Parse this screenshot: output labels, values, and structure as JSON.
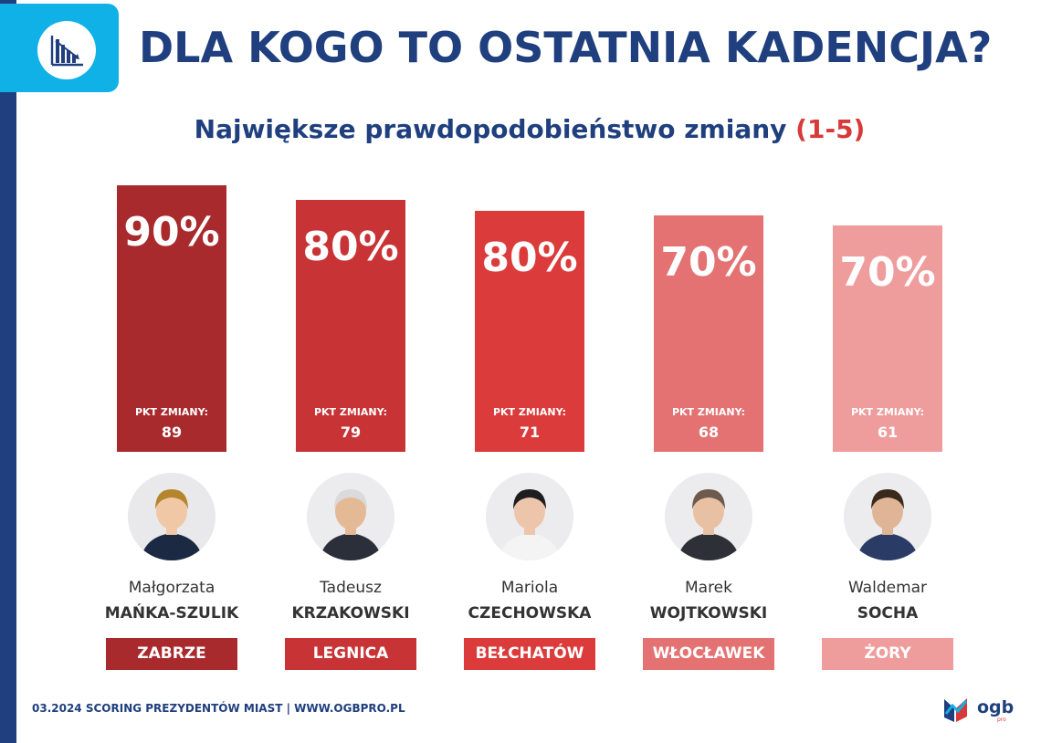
{
  "header": {
    "title": "DLA KOGO TO OSTATNIA KADENCJA?",
    "subtitle_main": "Największe prawdopodobieństwo zmiany",
    "subtitle_range": "(1-5)",
    "icon": "bar-chart-decline-icon"
  },
  "chart_data": {
    "type": "bar",
    "title": "Największe prawdopodobieństwo zmiany (1-5)",
    "categories": [
      "Małgorzata MAŃKA-SZULIK",
      "Tadeusz KRZAKOWSKI",
      "Mariola CZECHOWSKA",
      "Marek WOJTKOWSKI",
      "Waldemar SOCHA"
    ],
    "series": [
      {
        "values": [
          90,
          80,
          80,
          70,
          70
        ]
      }
    ],
    "bars": [
      {
        "percent": 90,
        "label": "90%",
        "pkt_label": "PKT ZMIANY:",
        "pkt": 89,
        "first_name": "Małgorzata",
        "last_name": "MAŃKA-SZULIK",
        "city": "ZABRZE",
        "color": "#a82a2d"
      },
      {
        "percent": 80,
        "label": "80%",
        "pkt_label": "PKT ZMIANY:",
        "pkt": 79,
        "first_name": "Tadeusz",
        "last_name": "KRZAKOWSKI",
        "city": "LEGNICA",
        "color": "#c83436"
      },
      {
        "percent": 80,
        "label": "80%",
        "pkt_label": "PKT ZMIANY:",
        "pkt": 71,
        "first_name": "Mariola",
        "last_name": "CZECHOWSKA",
        "city": "BEŁCHATÓW",
        "color": "#dc3b3b"
      },
      {
        "percent": 70,
        "label": "70%",
        "pkt_label": "PKT ZMIANY:",
        "pkt": 68,
        "first_name": "Marek",
        "last_name": "WOJTKOWSKI",
        "city": "WŁOCŁAWEK",
        "color": "#e47272"
      },
      {
        "percent": 70,
        "label": "70%",
        "pkt_label": "PKT ZMIANY:",
        "pkt": 61,
        "first_name": "Waldemar",
        "last_name": "SOCHA",
        "city": "ŻORY",
        "color": "#ef9c9c"
      }
    ],
    "pkt_range": [
      0,
      100
    ],
    "grid": false,
    "legend": "none"
  },
  "footer": {
    "text": "03.2024 SCORING PREZYDENTÓW MIAST | WWW.OGBPRO.PL"
  },
  "logo": {
    "text": "ogb",
    "sub": "pro"
  },
  "colors": {
    "navy": "#1f3f7e",
    "accent_blue": "#0fb1e6",
    "red": "#d83a3a"
  }
}
